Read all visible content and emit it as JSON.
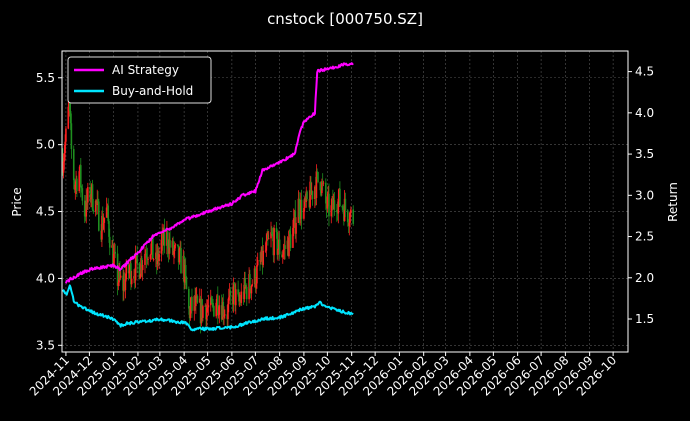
{
  "chart_data": {
    "type": "line",
    "title": "cnstock [000750.SZ]",
    "ylabel_left": "Price",
    "ylabel_right": "Return",
    "x_range": [
      "2024-10-27",
      "2026-10-20"
    ],
    "ylim_left": [
      3.45,
      5.7
    ],
    "ylim_right": [
      1.1,
      4.75
    ],
    "left_ticks": [
      "3.5",
      "4.0",
      "4.5",
      "5.0",
      "5.5"
    ],
    "right_ticks": [
      "1.5",
      "2.0",
      "2.5",
      "3.0",
      "3.5",
      "4.0",
      "4.5"
    ],
    "x_ticks": [
      "2024-11",
      "2024-12",
      "2025-01",
      "2025-02",
      "2025-03",
      "2025-04",
      "2025-05",
      "2025-06",
      "2025-07",
      "2025-08",
      "2025-09",
      "2025-10",
      "2025-11",
      "2025-12",
      "2026-01",
      "2026-02",
      "2026-03",
      "2026-04",
      "2026-05",
      "2026-06",
      "2026-07",
      "2026-08",
      "2026-09",
      "2026-10"
    ],
    "grid": true,
    "legend_position": "top-left",
    "legend": [
      "AI Strategy",
      "Buy-and-Hold"
    ],
    "colors": {
      "ai": "#ff00ff",
      "bh": "#00e5ff",
      "up": "#ff2020",
      "down": "#1f8f1f",
      "background": "#000000",
      "grid": "#555555"
    },
    "price_anchors": [
      [
        "2024-10-28",
        4.9
      ],
      [
        "2024-11-01",
        5.05
      ],
      [
        "2024-11-05",
        5.3
      ],
      [
        "2024-11-08",
        4.95
      ],
      [
        "2024-11-12",
        4.7
      ],
      [
        "2024-11-18",
        4.8
      ],
      [
        "2024-11-25",
        4.5
      ],
      [
        "2024-12-02",
        4.65
      ],
      [
        "2024-12-09",
        4.55
      ],
      [
        "2024-12-16",
        4.4
      ],
      [
        "2024-12-23",
        4.5
      ],
      [
        "2024-12-30",
        4.2
      ],
      [
        "2025-01-06",
        4.0
      ],
      [
        "2025-01-13",
        3.95
      ],
      [
        "2025-01-20",
        4.05
      ],
      [
        "2025-02-03",
        4.1
      ],
      [
        "2025-02-10",
        4.2
      ],
      [
        "2025-02-17",
        4.25
      ],
      [
        "2025-02-24",
        4.1
      ],
      [
        "2025-03-03",
        4.25
      ],
      [
        "2025-03-10",
        4.3
      ],
      [
        "2025-03-17",
        4.2
      ],
      [
        "2025-03-24",
        4.15
      ],
      [
        "2025-03-31",
        4.1
      ],
      [
        "2025-04-07",
        3.75
      ],
      [
        "2025-04-14",
        3.8
      ],
      [
        "2025-04-21",
        3.75
      ],
      [
        "2025-04-28",
        3.8
      ],
      [
        "2025-05-06",
        3.75
      ],
      [
        "2025-05-12",
        3.85
      ],
      [
        "2025-05-19",
        3.8
      ],
      [
        "2025-05-26",
        3.75
      ],
      [
        "2025-06-03",
        3.9
      ],
      [
        "2025-06-09",
        3.8
      ],
      [
        "2025-06-16",
        3.9
      ],
      [
        "2025-06-23",
        3.95
      ],
      [
        "2025-06-30",
        4.0
      ],
      [
        "2025-07-07",
        4.1
      ],
      [
        "2025-07-14",
        4.2
      ],
      [
        "2025-07-21",
        4.3
      ],
      [
        "2025-07-28",
        4.25
      ],
      [
        "2025-08-04",
        4.2
      ],
      [
        "2025-08-11",
        4.25
      ],
      [
        "2025-08-18",
        4.35
      ],
      [
        "2025-08-25",
        4.55
      ],
      [
        "2025-09-01",
        4.5
      ],
      [
        "2025-09-08",
        4.6
      ],
      [
        "2025-09-15",
        4.7
      ],
      [
        "2025-09-22",
        4.75
      ],
      [
        "2025-09-29",
        4.55
      ],
      [
        "2025-10-06",
        4.5
      ],
      [
        "2025-10-13",
        4.6
      ],
      [
        "2025-10-20",
        4.55
      ],
      [
        "2025-10-27",
        4.5
      ],
      [
        "2025-11-03",
        4.45
      ]
    ],
    "series": [
      {
        "name": "AI Strategy",
        "points": [
          [
            "2024-11-01",
            1.95
          ],
          [
            "2024-11-10",
            2.0
          ],
          [
            "2024-11-20",
            2.05
          ],
          [
            "2024-12-01",
            2.1
          ],
          [
            "2024-12-15",
            2.12
          ],
          [
            "2025-01-01",
            2.15
          ],
          [
            "2025-01-10",
            2.1
          ],
          [
            "2025-01-20",
            2.2
          ],
          [
            "2025-02-01",
            2.3
          ],
          [
            "2025-02-10",
            2.4
          ],
          [
            "2025-02-20",
            2.5
          ],
          [
            "2025-03-01",
            2.55
          ],
          [
            "2025-03-15",
            2.6
          ],
          [
            "2025-04-01",
            2.7
          ],
          [
            "2025-04-15",
            2.75
          ],
          [
            "2025-05-01",
            2.8
          ],
          [
            "2025-05-15",
            2.85
          ],
          [
            "2025-06-01",
            2.9
          ],
          [
            "2025-06-15",
            3.0
          ],
          [
            "2025-07-01",
            3.05
          ],
          [
            "2025-07-10",
            3.3
          ],
          [
            "2025-07-20",
            3.35
          ],
          [
            "2025-08-01",
            3.4
          ],
          [
            "2025-08-10",
            3.45
          ],
          [
            "2025-08-20",
            3.5
          ],
          [
            "2025-08-25",
            3.7
          ],
          [
            "2025-09-01",
            3.9
          ],
          [
            "2025-09-10",
            3.95
          ],
          [
            "2025-09-15",
            4.0
          ],
          [
            "2025-09-18",
            4.5
          ],
          [
            "2025-09-25",
            4.52
          ],
          [
            "2025-10-01",
            4.53
          ],
          [
            "2025-10-10",
            4.55
          ],
          [
            "2025-10-20",
            4.58
          ],
          [
            "2025-11-03",
            4.6
          ]
        ]
      },
      {
        "name": "Buy-and-Hold",
        "points": [
          [
            "2024-10-28",
            1.85
          ],
          [
            "2024-11-02",
            1.8
          ],
          [
            "2024-11-06",
            1.9
          ],
          [
            "2024-11-12",
            1.7
          ],
          [
            "2024-11-20",
            1.65
          ],
          [
            "2024-12-01",
            1.6
          ],
          [
            "2024-12-15",
            1.55
          ],
          [
            "2025-01-01",
            1.5
          ],
          [
            "2025-01-10",
            1.42
          ],
          [
            "2025-01-20",
            1.45
          ],
          [
            "2025-02-10",
            1.47
          ],
          [
            "2025-03-01",
            1.5
          ],
          [
            "2025-03-20",
            1.47
          ],
          [
            "2025-04-05",
            1.45
          ],
          [
            "2025-04-10",
            1.38
          ],
          [
            "2025-05-01",
            1.38
          ],
          [
            "2025-06-01",
            1.4
          ],
          [
            "2025-06-20",
            1.45
          ],
          [
            "2025-07-10",
            1.5
          ],
          [
            "2025-08-01",
            1.52
          ],
          [
            "2025-08-20",
            1.58
          ],
          [
            "2025-09-01",
            1.63
          ],
          [
            "2025-09-15",
            1.65
          ],
          [
            "2025-09-20",
            1.7
          ],
          [
            "2025-10-01",
            1.65
          ],
          [
            "2025-10-15",
            1.6
          ],
          [
            "2025-11-03",
            1.56
          ]
        ]
      }
    ]
  }
}
